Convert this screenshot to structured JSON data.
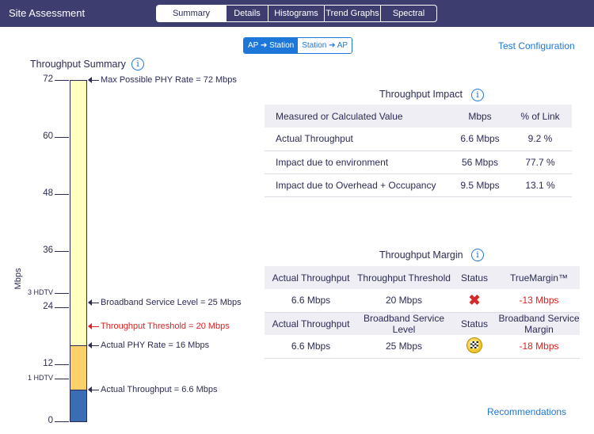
{
  "app": {
    "title": "Site Assessment"
  },
  "tabs": [
    {
      "label": "Summary",
      "active": true
    },
    {
      "label": "Details",
      "active": false
    },
    {
      "label": "Histograms",
      "active": false
    },
    {
      "label": "Trend Graphs",
      "active": false
    },
    {
      "label": "Spectral",
      "active": false
    }
  ],
  "direction": {
    "ap_to_station": "AP ➔ Station",
    "station_to_ap": "Station ➔ AP",
    "selected": "ap_to_station"
  },
  "test_configuration": "Test Configuration",
  "recommendations": "Recommendations",
  "throughput_summary": {
    "title": "Throughput Summary",
    "y_label": "Mbps",
    "ticks": [
      "72",
      "60",
      "48",
      "36",
      "24",
      "12",
      "0"
    ],
    "reference_ticks": [
      {
        "label": "3 HDTV",
        "value": 27
      },
      {
        "label": "1 HDTV",
        "value": 9
      }
    ],
    "max_phy_rate": 72,
    "actual_phy_rate": 16,
    "actual_throughput": 6.6,
    "markers": [
      {
        "label": "Max Possible PHY Rate = 72 Mbps",
        "value": 72,
        "color": "#2b2b55"
      },
      {
        "label": "Broadband Service Level = 25 Mbps",
        "value": 25,
        "color": "#2b2b55"
      },
      {
        "label": "Throughput Threshold = 20 Mbps",
        "value": 20,
        "color": "#e02020"
      },
      {
        "label": "Actual PHY Rate = 16 Mbps",
        "value": 16,
        "color": "#2b2b55"
      },
      {
        "label": "Actual Throughput = 6.6 Mbps",
        "value": 6.6,
        "color": "#2b2b55"
      }
    ],
    "colors": {
      "overhead": "#ffffc0",
      "environment": "#fdd16a",
      "throughput": "#3a6db4"
    }
  },
  "throughput_impact": {
    "title": "Throughput Impact",
    "headers": [
      "Measured or Calculated Value",
      "Mbps",
      "% of Link"
    ],
    "rows": [
      [
        "Actual Throughput",
        "6.6 Mbps",
        "9.2 %"
      ],
      [
        "Impact due to environment",
        "56 Mbps",
        "77.7 %"
      ],
      [
        "Impact due to Overhead + Occupancy",
        "9.5 Mbps",
        "13.1 %"
      ]
    ]
  },
  "throughput_margin": {
    "title": "Throughput Margin",
    "block1": {
      "headers": [
        "Actual Throughput",
        "Throughput Threshold",
        "Status",
        "TrueMargin™"
      ],
      "row": {
        "actual": "6.6 Mbps",
        "threshold": "20 Mbps",
        "status_icon": "red-x-icon",
        "margin": "-13 Mbps"
      }
    },
    "block2": {
      "headers": [
        "Actual Throughput",
        "Broadband Service Level",
        "Status",
        "Broadband Service Margin"
      ],
      "row": {
        "actual": "6.6 Mbps",
        "level": "25 Mbps",
        "status_icon": "checkered-flag-icon",
        "margin": "-18 Mbps"
      }
    }
  }
}
